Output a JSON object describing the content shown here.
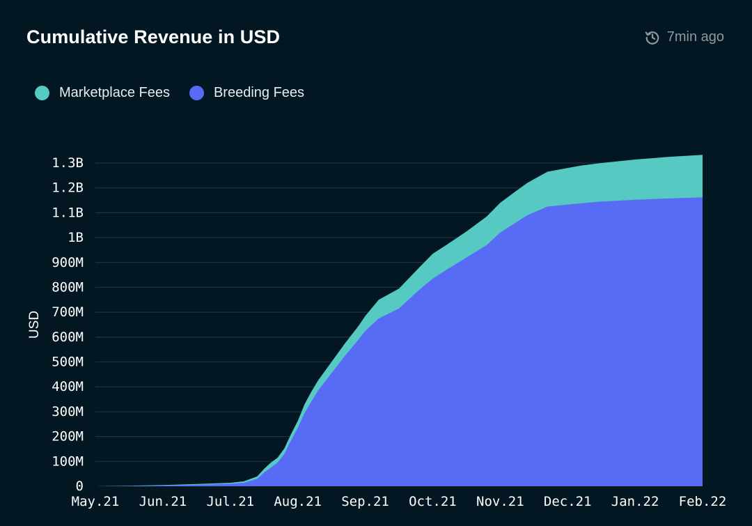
{
  "header": {
    "title": "Cumulative Revenue in USD",
    "updated": "7min ago",
    "updated_icon": "history-clock-icon"
  },
  "colors": {
    "background": "#031722",
    "marketplace": "#56c9c2",
    "breeding": "#586bf5",
    "grid": "#1c3342",
    "muted": "#8e99a2"
  },
  "chart_data": {
    "type": "area",
    "stacked": true,
    "title": "Cumulative Revenue in USD",
    "xlabel": "",
    "ylabel": "USD",
    "ylim": [
      0,
      1300000000
    ],
    "y_ticks": [
      0,
      100000000,
      200000000,
      300000000,
      400000000,
      500000000,
      600000000,
      700000000,
      800000000,
      900000000,
      1000000000,
      1100000000,
      1200000000,
      1300000000
    ],
    "y_tick_labels": [
      "0",
      "100M",
      "200M",
      "300M",
      "400M",
      "500M",
      "600M",
      "700M",
      "800M",
      "900M",
      "1B",
      "1.1B",
      "1.2B",
      "1.3B"
    ],
    "x_tick_labels": [
      "May.21",
      "Jun.21",
      "Jul.21",
      "Aug.21",
      "Sep.21",
      "Oct.21",
      "Nov.21",
      "Dec.21",
      "Jan.22",
      "Feb.22"
    ],
    "x_range_months": [
      0,
      9
    ],
    "legend": {
      "position": "top-left"
    },
    "series": [
      {
        "name": "Breeding Fees",
        "color": "#586bf5",
        "x_month": [
          0,
          0.5,
          1,
          1.5,
          2,
          2.2,
          2.4,
          2.5,
          2.6,
          2.7,
          2.8,
          2.9,
          3.0,
          3.1,
          3.2,
          3.3,
          3.5,
          3.7,
          3.9,
          4.0,
          4.2,
          4.5,
          4.8,
          5.0,
          5.2,
          5.5,
          5.8,
          6.0,
          6.2,
          6.4,
          6.7,
          7.0,
          7.2,
          7.5,
          8.0,
          8.5,
          9.0
        ],
        "values": [
          0,
          1000000,
          3000000,
          6000000,
          10000000,
          14000000,
          30000000,
          55000000,
          75000000,
          95000000,
          130000000,
          185000000,
          235000000,
          295000000,
          340000000,
          385000000,
          455000000,
          525000000,
          590000000,
          625000000,
          675000000,
          715000000,
          790000000,
          835000000,
          870000000,
          920000000,
          970000000,
          1020000000,
          1055000000,
          1090000000,
          1125000000,
          1133000000,
          1138000000,
          1145000000,
          1152000000,
          1158000000,
          1162000000
        ]
      },
      {
        "name": "Marketplace Fees",
        "color": "#56c9c2",
        "x_month": [
          0,
          0.5,
          1,
          1.5,
          2,
          2.2,
          2.4,
          2.5,
          2.6,
          2.7,
          2.8,
          2.9,
          3.0,
          3.1,
          3.2,
          3.3,
          3.5,
          3.7,
          3.9,
          4.0,
          4.2,
          4.5,
          4.8,
          5.0,
          5.2,
          5.5,
          5.8,
          6.0,
          6.2,
          6.4,
          6.7,
          7.0,
          7.2,
          7.5,
          8.0,
          8.5,
          9.0
        ],
        "values": [
          0,
          1000000,
          2000000,
          3000000,
          4000000,
          6000000,
          10000000,
          15000000,
          20000000,
          20000000,
          22000000,
          25000000,
          28000000,
          35000000,
          40000000,
          40000000,
          45000000,
          50000000,
          55000000,
          60000000,
          75000000,
          80000000,
          90000000,
          100000000,
          100000000,
          105000000,
          115000000,
          120000000,
          125000000,
          130000000,
          140000000,
          147000000,
          152000000,
          155000000,
          162000000,
          167000000,
          171000000
        ]
      }
    ]
  }
}
